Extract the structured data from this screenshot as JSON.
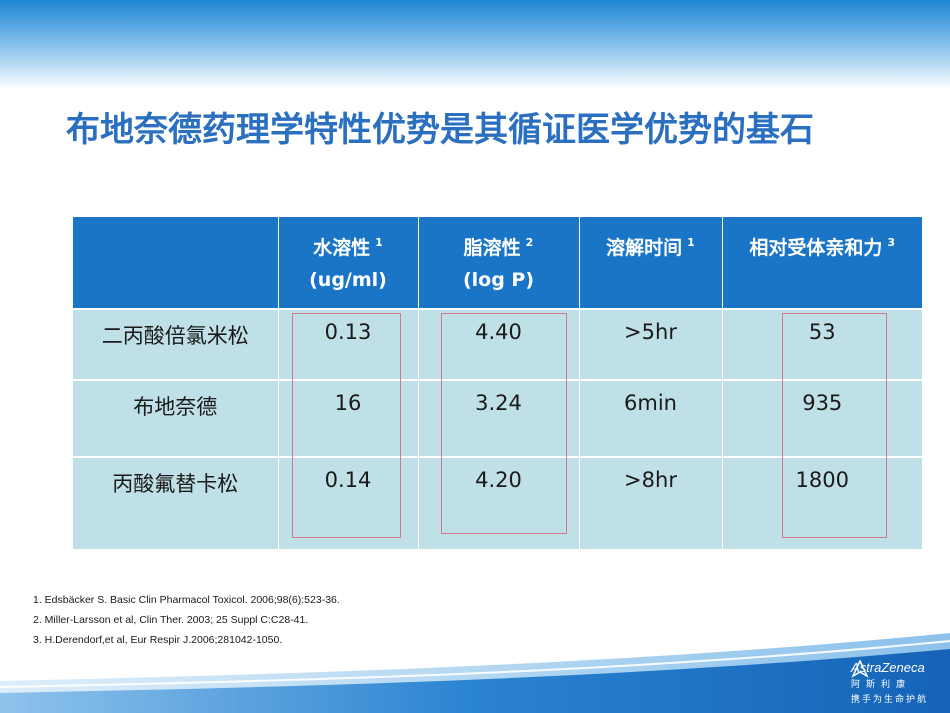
{
  "title": "布地奈德药理学特性优势是其循证医学优势的基石",
  "table": {
    "headers": [
      {
        "text": "",
        "sup": ""
      },
      {
        "text": "水溶性",
        "sup": "1",
        "line2": "(ug/ml)"
      },
      {
        "text": "脂溶性",
        "sup": "2",
        "line2": "(log P)"
      },
      {
        "text": "溶解时间",
        "sup": "1",
        "line2": ""
      },
      {
        "text": "相对受体亲和力",
        "sup": "3",
        "line2": ""
      }
    ],
    "rows": [
      [
        "二丙酸倍氯米松",
        "0.13",
        "4.40",
        ">5hr",
        "53"
      ],
      [
        "布地奈德",
        "16",
        "3.24",
        "6min",
        "935"
      ],
      [
        "丙酸氟替卡松",
        "0.14",
        "4.20",
        ">8hr",
        "1800"
      ]
    ]
  },
  "references": [
    "1. Edsbäcker S. Basic Clin Pharmacol Toxicol. 2006;98(6):523-36.",
    "2. Miller-Larsson et al, Clin Ther. 2003; 25 Suppl C:C28-41.",
    "3. H.Derendorf,et al, Eur Respir J.2006;281042-1050."
  ],
  "logo": {
    "name": "AstraZeneca",
    "cn_name": "阿斯利康",
    "slogan": "携手为生命护航"
  },
  "colors": {
    "title": "#2a6fc0",
    "header_bg": "#1b75c6",
    "cell_bg": "#bfe0e6",
    "highlight_border": "#d07a8a"
  }
}
